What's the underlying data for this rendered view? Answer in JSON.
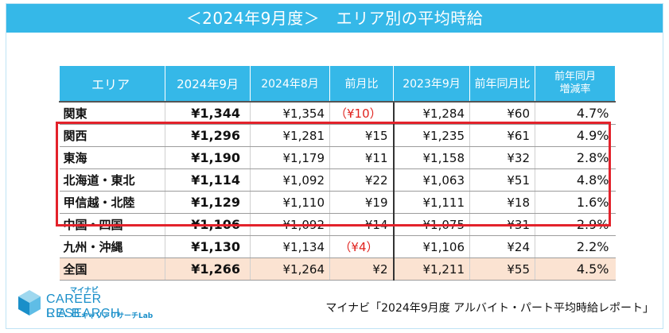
{
  "title": "＜2024年9月度＞　エリア別の平均時給",
  "colors": {
    "header": "#35b8e8",
    "highlight": "#e3222b",
    "negative": "#e0221d",
    "total_row": "#fbe3d2"
  },
  "chart_data": {
    "type": "table",
    "columns": [
      "エリア",
      "2024年9月",
      "2024年8月",
      "前月比",
      "2023年9月",
      "前年同月比",
      "前年同月増減率"
    ],
    "header_lines": {
      "rate": [
        "前年同月",
        "増減率"
      ]
    },
    "rows": [
      {
        "area": "関東",
        "sep2024": "¥1,344",
        "aug2024": "¥1,354",
        "mom": "（¥10）",
        "mom_negative": true,
        "sep2023": "¥1,284",
        "yoy": "¥60",
        "rate": "4.7%"
      },
      {
        "area": "関西",
        "sep2024": "¥1,296",
        "aug2024": "¥1,281",
        "mom": "¥15",
        "mom_negative": false,
        "sep2023": "¥1,235",
        "yoy": "¥61",
        "rate": "4.9%"
      },
      {
        "area": "東海",
        "sep2024": "¥1,190",
        "aug2024": "¥1,179",
        "mom": "¥11",
        "mom_negative": false,
        "sep2023": "¥1,158",
        "yoy": "¥32",
        "rate": "2.8%"
      },
      {
        "area": "北海道・東北",
        "sep2024": "¥1,114",
        "aug2024": "¥1,092",
        "mom": "¥22",
        "mom_negative": false,
        "sep2023": "¥1,063",
        "yoy": "¥51",
        "rate": "4.8%"
      },
      {
        "area": "甲信越・北陸",
        "sep2024": "¥1,129",
        "aug2024": "¥1,110",
        "mom": "¥19",
        "mom_negative": false,
        "sep2023": "¥1,111",
        "yoy": "¥18",
        "rate": "1.6%"
      },
      {
        "area": "中国・四国",
        "sep2024": "¥1,106",
        "aug2024": "¥1,092",
        "mom": "¥14",
        "mom_negative": false,
        "sep2023": "¥1,075",
        "yoy": "¥31",
        "rate": "2.9%"
      },
      {
        "area": "九州・沖縄",
        "sep2024": "¥1,130",
        "aug2024": "¥1,134",
        "mom": "（¥4）",
        "mom_negative": true,
        "sep2023": "¥1,106",
        "yoy": "¥24",
        "rate": "2.2%"
      },
      {
        "area": "全国",
        "sep2024": "¥1,266",
        "aug2024": "¥1,264",
        "mom": "¥2",
        "mom_negative": false,
        "sep2023": "¥1,211",
        "yoy": "¥55",
        "rate": "4.5%",
        "total": true
      }
    ],
    "highlighted_rows": [
      "関西",
      "東海",
      "北海道・東北",
      "甲信越・北陸",
      "中国・四国"
    ]
  },
  "logo": {
    "brand_small": "マイナビ",
    "line1": "CAREER RESEARCH",
    "line2": "LAB",
    "sub": "キャリアリサーチLab",
    "icon": "cube-logo-icon"
  },
  "source": "マイナビ「2024年9月度 アルバイト・パート平均時給レポート」"
}
